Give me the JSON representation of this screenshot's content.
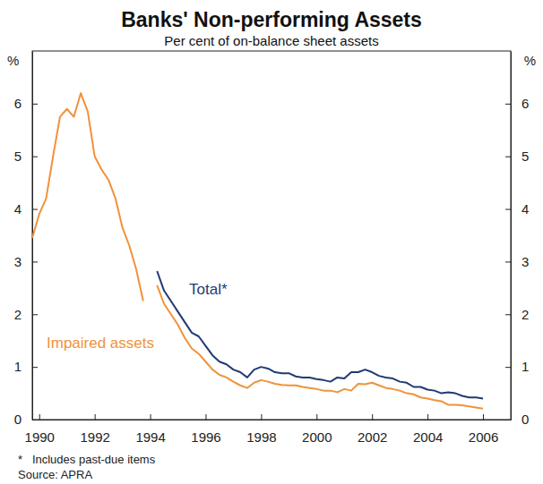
{
  "chart_data": {
    "type": "line",
    "title": "Banks' Non-performing Assets",
    "subtitle": "Per cent of on-balance sheet assets",
    "ylabel": "%",
    "footnote": "*   Includes past-due items",
    "source": "Source: APRA",
    "x": [
      1989.75,
      1990,
      1990.25,
      1990.5,
      1990.75,
      1991,
      1991.25,
      1991.5,
      1991.75,
      1992,
      1992.25,
      1992.5,
      1992.75,
      1993,
      1993.25,
      1993.5,
      1993.75,
      1994,
      1994.25,
      1994.5,
      1994.75,
      1995,
      1995.25,
      1995.5,
      1995.75,
      1996,
      1996.25,
      1996.5,
      1996.75,
      1997,
      1997.25,
      1997.5,
      1997.75,
      1998,
      1998.25,
      1998.5,
      1998.75,
      1999,
      1999.25,
      1999.5,
      1999.75,
      2000,
      2000.25,
      2000.5,
      2000.75,
      2001,
      2001.25,
      2001.5,
      2001.75,
      2002,
      2002.25,
      2002.5,
      2002.75,
      2003,
      2003.25,
      2003.5,
      2003.75,
      2004,
      2004.25,
      2004.5,
      2004.75,
      2005,
      2005.25,
      2005.5,
      2005.75,
      2006
    ],
    "series": [
      {
        "name": "Impaired assets",
        "color": "#f0923a",
        "values": [
          3.45,
          3.9,
          4.2,
          5.0,
          5.75,
          5.9,
          5.75,
          6.2,
          5.85,
          5.0,
          4.75,
          4.55,
          4.2,
          3.65,
          3.3,
          2.85,
          2.25,
          null,
          2.55,
          2.2,
          2.0,
          1.8,
          1.55,
          1.35,
          1.25,
          1.1,
          0.95,
          0.85,
          0.8,
          0.72,
          0.65,
          0.6,
          0.7,
          0.75,
          0.72,
          0.68,
          0.66,
          0.65,
          0.65,
          0.62,
          0.6,
          0.58,
          0.55,
          0.55,
          0.52,
          0.58,
          0.55,
          0.68,
          0.67,
          0.7,
          0.65,
          0.6,
          0.58,
          0.55,
          0.5,
          0.48,
          0.42,
          0.4,
          0.37,
          0.35,
          0.28,
          0.28,
          0.27,
          0.25,
          0.23,
          0.21
        ]
      },
      {
        "name": "Total*",
        "color": "#213a73",
        "values": [
          null,
          null,
          null,
          null,
          null,
          null,
          null,
          null,
          null,
          null,
          null,
          null,
          null,
          null,
          null,
          null,
          null,
          null,
          2.82,
          2.45,
          2.25,
          2.05,
          1.85,
          1.65,
          1.58,
          1.4,
          1.22,
          1.1,
          1.05,
          0.95,
          0.9,
          0.8,
          0.95,
          1.0,
          0.97,
          0.9,
          0.88,
          0.88,
          0.82,
          0.8,
          0.8,
          0.77,
          0.75,
          0.72,
          0.8,
          0.78,
          0.9,
          0.9,
          0.95,
          0.9,
          0.83,
          0.8,
          0.78,
          0.72,
          0.7,
          0.62,
          0.62,
          0.57,
          0.55,
          0.5,
          0.52,
          0.5,
          0.45,
          0.42,
          0.42,
          0.4
        ]
      }
    ],
    "xlim": [
      1989.75,
      2007
    ],
    "xticks": [
      1990,
      1992,
      1994,
      1996,
      1998,
      2000,
      2002,
      2004,
      2006
    ],
    "ylim": [
      0,
      7
    ],
    "yticks": [
      0,
      1,
      2,
      3,
      4,
      5,
      6
    ],
    "grid": false
  }
}
